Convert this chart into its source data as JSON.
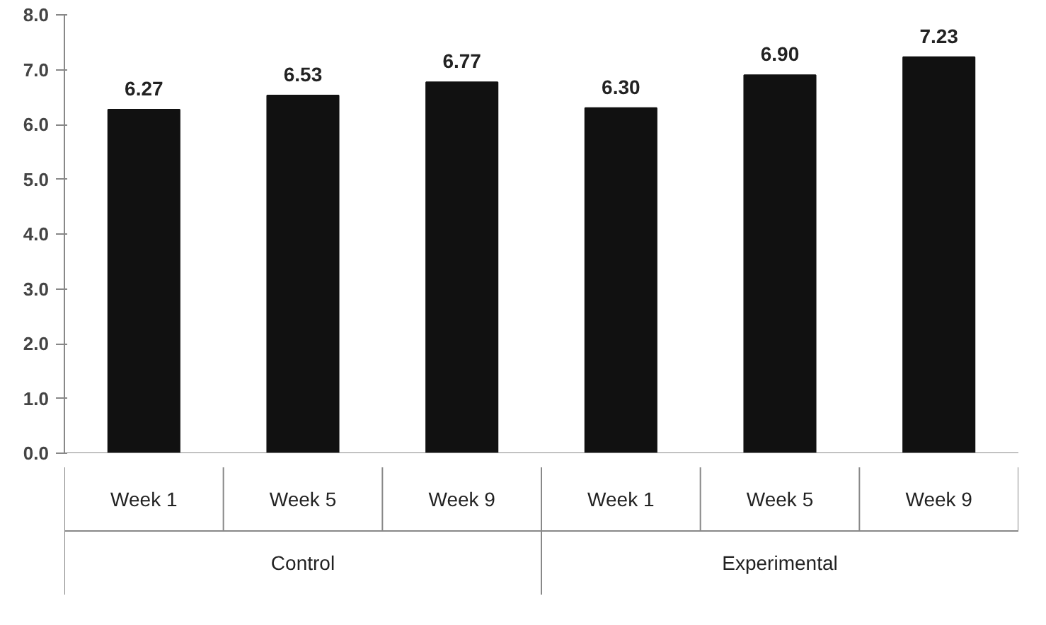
{
  "chart_data": {
    "type": "bar",
    "categories": [
      "Week 1",
      "Week 5",
      "Week 9",
      "Week 1",
      "Week 5",
      "Week 9"
    ],
    "values": [
      6.27,
      6.53,
      6.77,
      6.3,
      6.9,
      7.23
    ],
    "value_labels": [
      "6.27",
      "6.53",
      "6.77",
      "6.30",
      "6.90",
      "7.23"
    ],
    "color": "#111111",
    "annotations": [
      "Control",
      "Experimental"
    ],
    "ylim": [
      0,
      8
    ],
    "yticks": [
      {
        "value": 0,
        "label": "0.0"
      },
      {
        "value": 1,
        "label": "1.0"
      },
      {
        "value": 2,
        "label": "2.0"
      },
      {
        "value": 3,
        "label": "3.0"
      },
      {
        "value": 4,
        "label": "4.0"
      },
      {
        "value": 5,
        "label": "5.0"
      },
      {
        "value": 6,
        "label": "6.0"
      },
      {
        "value": 7,
        "label": "7.0"
      },
      {
        "value": 8,
        "label": "8.0"
      }
    ],
    "grid": false
  }
}
